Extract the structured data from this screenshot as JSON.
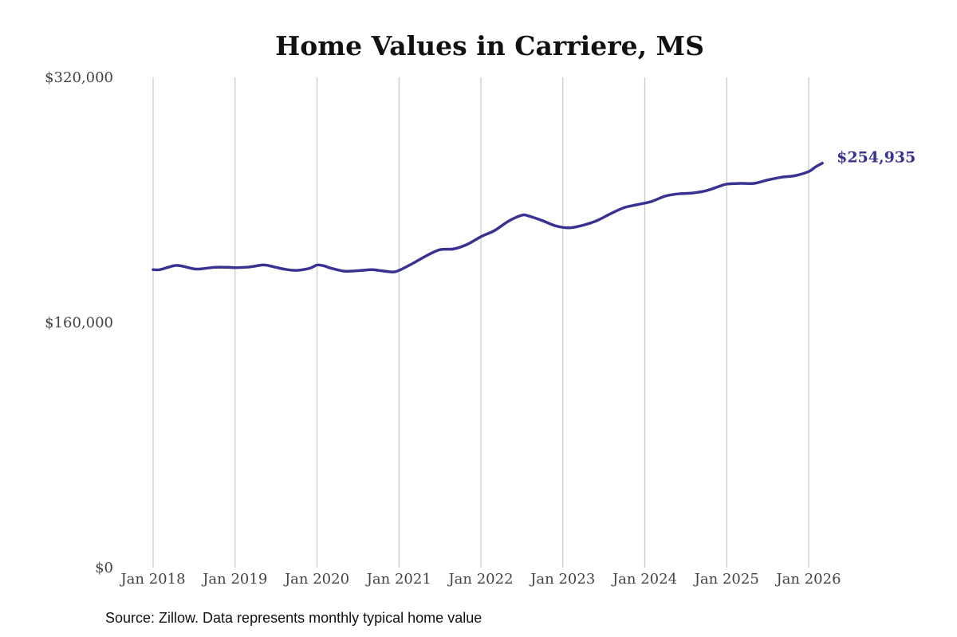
{
  "chart_data": {
    "type": "line",
    "title": "Home Values in Carriere, MS",
    "xlabel": "",
    "ylabel": "",
    "ylim": [
      0,
      320000
    ],
    "y_ticks": [
      {
        "value": 0,
        "label": "$0"
      },
      {
        "value": 160000,
        "label": "$160,000"
      },
      {
        "value": 320000,
        "label": "$320,000"
      }
    ],
    "x_ticks": [
      {
        "year": 2018,
        "label": "Jan 2018"
      },
      {
        "year": 2019,
        "label": "Jan 2019"
      },
      {
        "year": 2020,
        "label": "Jan 2020"
      },
      {
        "year": 2021,
        "label": "Jan 2021"
      },
      {
        "year": 2022,
        "label": "Jan 2022"
      },
      {
        "year": 2023,
        "label": "Jan 2023"
      },
      {
        "year": 2024,
        "label": "Jan 2024"
      },
      {
        "year": 2025,
        "label": "Jan 2025"
      },
      {
        "year": 2026,
        "label": "Jan 2026"
      }
    ],
    "grid": "vertical",
    "series": [
      {
        "color": "#3a3291",
        "x": [
          "2018-01",
          "2018-02",
          "2018-04",
          "2018-05",
          "2018-07",
          "2018-08",
          "2018-10",
          "2018-12",
          "2019-01",
          "2019-03",
          "2019-05",
          "2019-06",
          "2019-08",
          "2019-10",
          "2019-12",
          "2020-01",
          "2020-02",
          "2020-03",
          "2020-05",
          "2020-07",
          "2020-09",
          "2020-10",
          "2020-12",
          "2021-01",
          "2021-03",
          "2021-05",
          "2021-07",
          "2021-09",
          "2021-11",
          "2022-01",
          "2022-03",
          "2022-05",
          "2022-07",
          "2022-08",
          "2022-10",
          "2022-12",
          "2023-02",
          "2023-04",
          "2023-06",
          "2023-08",
          "2023-10",
          "2023-12",
          "2024-02",
          "2024-04",
          "2024-06",
          "2024-08",
          "2024-10",
          "2024-12",
          "2025-01",
          "2025-03",
          "2025-05",
          "2025-07",
          "2025-09",
          "2025-11",
          "2026-01",
          "2026-02",
          "2026-03"
        ],
        "values": [
          194500,
          194500,
          197000,
          197000,
          195000,
          195000,
          196000,
          196000,
          195800,
          196200,
          197500,
          197000,
          195000,
          194000,
          195500,
          197500,
          197000,
          195500,
          193500,
          193800,
          194500,
          194000,
          193000,
          194000,
          198500,
          203500,
          207500,
          208000,
          211000,
          216000,
          220000,
          226000,
          230000,
          229500,
          226500,
          223000,
          221800,
          223500,
          226500,
          231000,
          235000,
          237000,
          239000,
          242500,
          244000,
          244500,
          246000,
          249000,
          250300,
          250800,
          250800,
          253000,
          254800,
          255800,
          258500,
          261500,
          264000
        ],
        "end_label": "$254,935"
      }
    ]
  },
  "footer": {
    "source": "Source: Zillow. Data represents monthly typical home value"
  }
}
